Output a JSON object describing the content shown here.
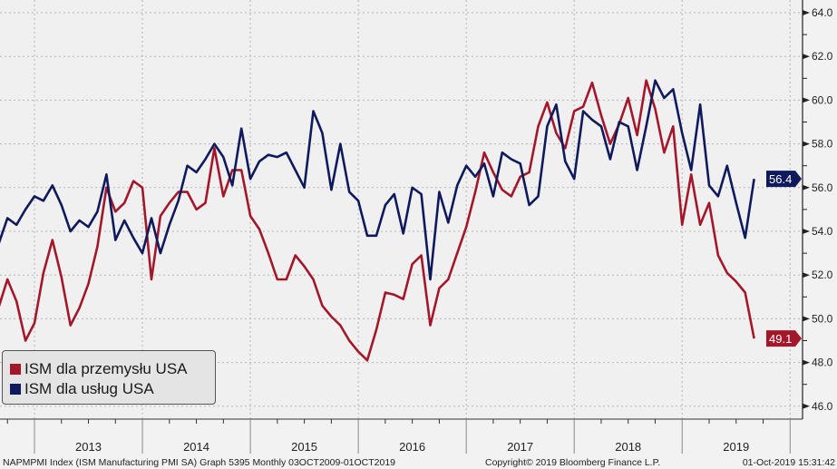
{
  "chart_data": {
    "type": "line",
    "frequency": "Monthly",
    "x_start": "2012-08",
    "x_end": "2019-08",
    "ylim": [
      45.2,
      64.6
    ],
    "yticks": [
      "64.0",
      "62.0",
      "60.0",
      "58.0",
      "56.0",
      "54.0",
      "52.0",
      "50.0",
      "48.0",
      "46.0"
    ],
    "xtick_labels": [
      "2013",
      "2014",
      "2015",
      "2016",
      "2017",
      "2018",
      "2019"
    ],
    "grid": true,
    "legend_position": "bottom-left",
    "series": [
      {
        "name": "ISM dla przemysłu USA",
        "color": "#a3172b",
        "last_label": "49.1",
        "values": [
          50.5,
          51.8,
          50.8,
          49.0,
          49.8,
          52.1,
          53.6,
          51.9,
          49.7,
          50.5,
          51.6,
          53.3,
          56.0,
          54.9,
          55.3,
          56.3,
          56.0,
          51.8,
          54.7,
          55.3,
          55.8,
          55.8,
          55.0,
          55.3,
          57.8,
          55.6,
          56.8,
          56.8,
          54.7,
          54.1,
          53.0,
          51.8,
          51.8,
          52.9,
          52.4,
          51.8,
          50.6,
          50.1,
          49.7,
          49.0,
          48.5,
          48.1,
          49.5,
          51.2,
          51.1,
          50.9,
          52.5,
          52.9,
          49.7,
          51.4,
          51.8,
          53.0,
          54.2,
          55.8,
          57.6,
          56.7,
          55.9,
          55.6,
          56.5,
          56.7,
          58.8,
          59.9,
          58.5,
          57.8,
          59.5,
          59.7,
          60.8,
          59.3,
          58.0,
          58.9,
          60.1,
          58.4,
          60.9,
          59.6,
          57.6,
          58.8,
          54.3,
          56.6,
          54.3,
          55.3,
          52.9,
          52.1,
          51.7,
          51.2,
          49.1
        ]
      },
      {
        "name": "ISM dla usług USA",
        "color": "#0f1a5c",
        "last_label": "56.4",
        "values": [
          53.4,
          54.6,
          54.3,
          55.0,
          55.6,
          55.4,
          56.1,
          55.2,
          54.0,
          54.5,
          54.2,
          54.9,
          56.6,
          53.6,
          54.5,
          53.7,
          53.0,
          54.6,
          53.0,
          54.3,
          55.4,
          57.0,
          56.7,
          57.3,
          58.0,
          57.4,
          56.1,
          58.7,
          56.4,
          57.2,
          57.5,
          57.4,
          57.6,
          56.8,
          56.0,
          59.5,
          58.5,
          55.9,
          58.0,
          55.8,
          55.4,
          53.8,
          53.8,
          55.2,
          55.7,
          53.9,
          56.0,
          55.7,
          51.8,
          55.8,
          54.4,
          56.1,
          57.0,
          56.5,
          57.1,
          55.6,
          57.6,
          57.3,
          57.1,
          55.2,
          55.6,
          58.8,
          59.8,
          57.2,
          56.4,
          59.5,
          59.1,
          58.8,
          57.3,
          59.0,
          58.8,
          56.8,
          58.8,
          60.9,
          60.1,
          60.5,
          58.5,
          56.8,
          59.8,
          56.1,
          55.6,
          57.0,
          55.3,
          53.7,
          56.4
        ]
      }
    ]
  },
  "footer": {
    "source": "NAPMPMI Index (ISM Manufacturing PMI SA) Graph 5395  Monthly 03OCT2009-01OCT2019",
    "copyright": "Copyright© 2019 Bloomberg Finance L.P.",
    "timestamp": "01-Oct-2019 15:31:42"
  }
}
